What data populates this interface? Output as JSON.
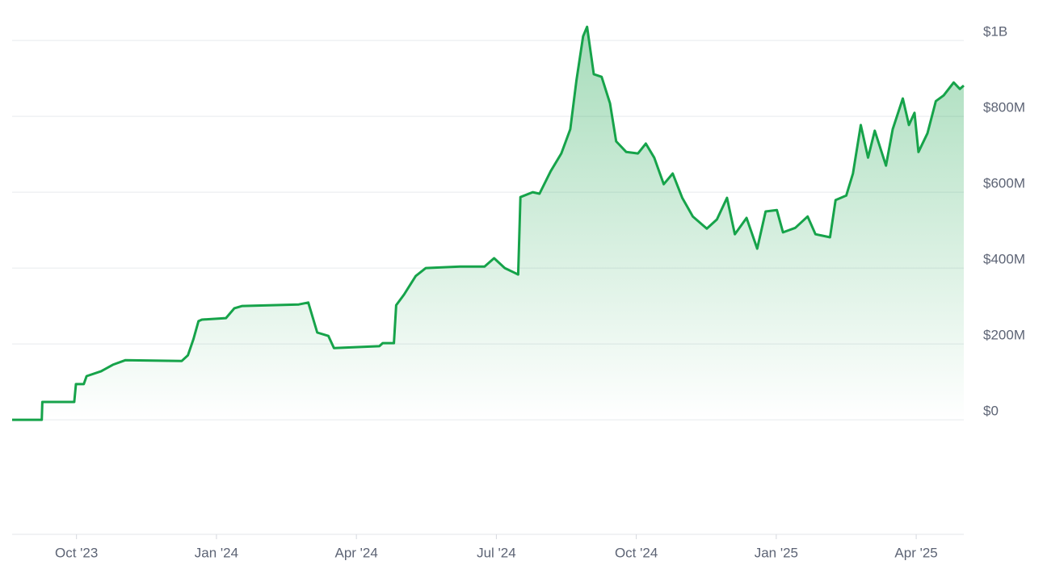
{
  "chart_data": {
    "type": "area",
    "x": [
      2023.635,
      2023.688,
      2023.689,
      2023.746,
      2023.749,
      2023.763,
      2023.768,
      2023.794,
      2023.815,
      2023.837,
      2023.938,
      2023.949,
      2023.959,
      2023.968,
      2023.974,
      2024.017,
      2024.032,
      2024.046,
      2024.147,
      2024.164,
      2024.18,
      2024.2,
      2024.21,
      2024.291,
      2024.297,
      2024.317,
      2024.321,
      2024.335,
      2024.356,
      2024.374,
      2024.435,
      2024.479,
      2024.496,
      2024.515,
      2024.539,
      2024.543,
      2024.565,
      2024.577,
      2024.597,
      2024.616,
      2024.632,
      2024.643,
      2024.655,
      2024.662,
      2024.674,
      2024.688,
      2024.703,
      2024.714,
      2024.732,
      2024.753,
      2024.767,
      2024.782,
      2024.799,
      2024.815,
      2024.832,
      2024.851,
      2024.876,
      2024.894,
      2024.912,
      2024.926,
      2024.947,
      2024.966,
      2024.981,
      2025.001,
      2025.012,
      2025.034,
      2025.056,
      2025.07,
      2025.096,
      2025.106,
      2025.125,
      2025.137,
      2025.151,
      2025.164,
      2025.176,
      2025.196,
      2025.208,
      2025.226,
      2025.237,
      2025.247,
      2025.254,
      2025.27,
      2025.285,
      2025.299,
      2025.317,
      2025.328,
      2025.335
    ],
    "values": [
      0,
      0,
      47,
      47,
      94,
      94,
      115,
      128,
      145,
      157,
      155,
      170,
      213,
      260,
      264,
      268,
      294,
      300,
      304,
      309,
      230,
      221,
      189,
      194,
      202,
      202,
      302,
      330,
      379,
      400,
      404,
      404,
      426,
      400,
      383,
      587,
      600,
      596,
      655,
      702,
      766,
      894,
      1011,
      1036,
      911,
      904,
      834,
      734,
      706,
      702,
      728,
      691,
      621,
      649,
      585,
      536,
      504,
      528,
      585,
      489,
      532,
      451,
      549,
      553,
      494,
      506,
      536,
      489,
      481,
      579,
      591,
      649,
      777,
      691,
      762,
      670,
      766,
      847,
      777,
      809,
      706,
      755,
      840,
      855,
      889,
      872,
      881
    ],
    "color": "#16a34a",
    "xlim": [
      2023.635,
      2025.335
    ],
    "xticks": [
      {
        "value": 2023.75,
        "label": "Oct '23"
      },
      {
        "value": 2024.0,
        "label": "Jan '24"
      },
      {
        "value": 2024.25,
        "label": "Apr '24"
      },
      {
        "value": 2024.5,
        "label": "Jul '24"
      },
      {
        "value": 2024.75,
        "label": "Oct '24"
      },
      {
        "value": 2025.0,
        "label": "Jan '25"
      },
      {
        "value": 2025.25,
        "label": "Apr '25"
      }
    ],
    "ylim": [
      -302,
      1064
    ],
    "yticks": [
      {
        "value": 0,
        "label": "$0"
      },
      {
        "value": 200,
        "label": "$200M"
      },
      {
        "value": 400,
        "label": "$400M"
      },
      {
        "value": 600,
        "label": "$600M"
      },
      {
        "value": 800,
        "label": "$800M"
      },
      {
        "value": 1000,
        "label": "$1B"
      }
    ],
    "grid": true
  }
}
